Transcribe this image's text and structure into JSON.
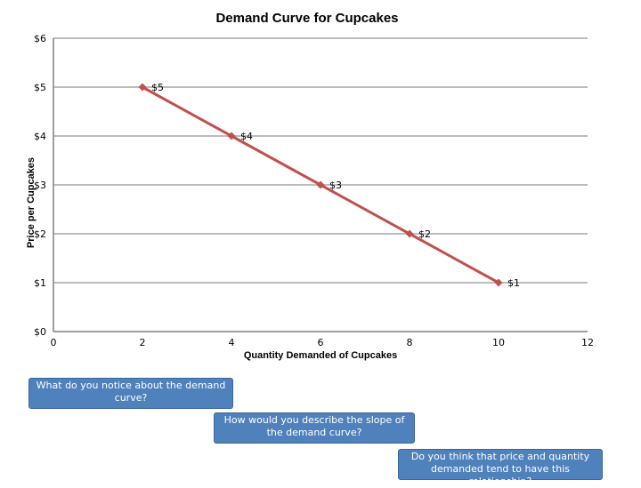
{
  "chart_data": {
    "type": "line",
    "title": "Demand Curve for Cupcakes",
    "xlabel": "Quantity Demanded of Cupcakes",
    "ylabel": "Price per Cupcakes",
    "xlim": [
      0,
      12
    ],
    "ylim": [
      0,
      6
    ],
    "x_ticks": [
      0,
      2,
      4,
      6,
      8,
      10,
      12
    ],
    "x_tick_labels": [
      "0",
      "2",
      "4",
      "6",
      "8",
      "10",
      "12"
    ],
    "y_ticks": [
      0,
      1,
      2,
      3,
      4,
      5,
      6
    ],
    "y_tick_labels": [
      "$0",
      "$1",
      "$2",
      "$3",
      "$4",
      "$5",
      "$6"
    ],
    "grid": true,
    "series": [
      {
        "name": "Demand",
        "color": "#c0504d",
        "x": [
          2,
          4,
          6,
          8,
          10
        ],
        "y": [
          5,
          4,
          3,
          2,
          1
        ],
        "data_labels": [
          "$5",
          "$4",
          "$3",
          "$2",
          "$1"
        ]
      }
    ]
  },
  "callouts": [
    "What do you notice about the demand curve?",
    "How would you describe the slope of the demand curve?",
    "Do you think that price and quantity demanded tend to have this relationship?"
  ],
  "colors": {
    "line": "#c0504d",
    "marker": "#c0504d",
    "grid": "#a6a6a6",
    "callout_bg": "#4f81bd",
    "callout_text": "#ffffff"
  }
}
